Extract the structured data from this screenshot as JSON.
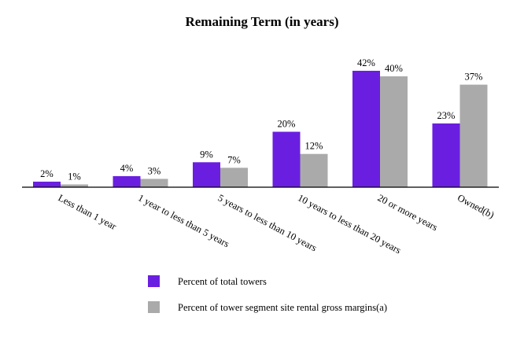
{
  "chart_data": {
    "type": "bar",
    "title": "Remaining Term (in years)",
    "categories": [
      "Less than 1 year",
      "1 year to less than 5 years",
      "5 years to less than 10 years",
      "10 years to less than 20 years",
      "20 or more years",
      "Owned(b)"
    ],
    "series": [
      {
        "name": "Percent of total towers",
        "values": [
          2,
          4,
          9,
          20,
          42,
          23
        ],
        "labels": [
          "2%",
          "4%",
          "9%",
          "20%",
          "42%",
          "23%"
        ],
        "color": "#6a1fe0"
      },
      {
        "name": "Percent of tower segment site rental gross margins(a)",
        "values": [
          1,
          3,
          7,
          12,
          40,
          37
        ],
        "labels": [
          "1%",
          "3%",
          "7%",
          "12%",
          "40%",
          "37%"
        ],
        "color": "#aaaaaa"
      }
    ],
    "xlabel": "",
    "ylabel": "",
    "ylim": [
      0,
      42
    ],
    "grid": false,
    "legend_position": "bottom"
  }
}
